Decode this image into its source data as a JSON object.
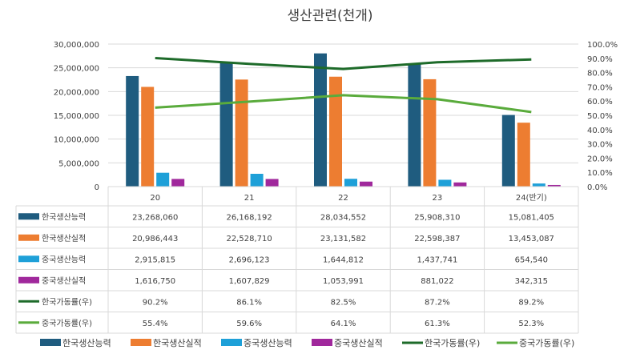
{
  "chart_data": {
    "type": "bar",
    "title": "생산관련(천개)",
    "categories": [
      "20",
      "21",
      "22",
      "23",
      "24(반기)"
    ],
    "y_left": {
      "min": 0,
      "max": 30000000,
      "ticks": [
        "0",
        "5,000,000",
        "10,000,000",
        "15,000,000",
        "20,000,000",
        "25,000,000",
        "30,000,000"
      ]
    },
    "y_right": {
      "min": 0,
      "max": 100,
      "ticks": [
        "0.0%",
        "10.0%",
        "20.0%",
        "30.0%",
        "40.0%",
        "50.0%",
        "60.0%",
        "70.0%",
        "80.0%",
        "90.0%",
        "100.0%"
      ]
    },
    "series": [
      {
        "name": "한국생산능력",
        "kind": "bar",
        "axis": "left",
        "color": "#1f5c7f",
        "values": [
          23268060,
          26168192,
          28034552,
          25908310,
          15081405
        ],
        "labels": [
          "23,268,060",
          "26,168,192",
          "28,034,552",
          "25,908,310",
          "15,081,405"
        ]
      },
      {
        "name": "한국생산실적",
        "kind": "bar",
        "axis": "left",
        "color": "#ed7d31",
        "values": [
          20986443,
          22528710,
          23131582,
          22598387,
          13453087
        ],
        "labels": [
          "20,986,443",
          "22,528,710",
          "23,131,582",
          "22,598,387",
          "13,453,087"
        ]
      },
      {
        "name": "중국생산능력",
        "kind": "bar",
        "axis": "left",
        "color": "#1ea0d8",
        "values": [
          2915815,
          2696123,
          1644812,
          1437741,
          654540
        ],
        "labels": [
          "2,915,815",
          "2,696,123",
          "1,644,812",
          "1,437,741",
          "654,540"
        ]
      },
      {
        "name": "중국생산실적",
        "kind": "bar",
        "axis": "left",
        "color": "#a0289c",
        "values": [
          1616750,
          1607829,
          1053991,
          881022,
          342315
        ],
        "labels": [
          "1,616,750",
          "1,607,829",
          "1,053,991",
          "881,022",
          "342,315"
        ]
      },
      {
        "name": "한국가동률(우)",
        "kind": "line",
        "axis": "right",
        "color": "#1e6b2a",
        "values": [
          90.2,
          86.1,
          82.5,
          87.2,
          89.2
        ],
        "labels": [
          "90.2%",
          "86.1%",
          "82.5%",
          "87.2%",
          "89.2%"
        ]
      },
      {
        "name": "중국가동률(우)",
        "kind": "line",
        "axis": "right",
        "color": "#5aab3c",
        "values": [
          55.4,
          59.6,
          64.1,
          61.3,
          52.3
        ],
        "labels": [
          "55.4%",
          "59.6%",
          "64.1%",
          "61.3%",
          "52.3%"
        ]
      }
    ]
  }
}
